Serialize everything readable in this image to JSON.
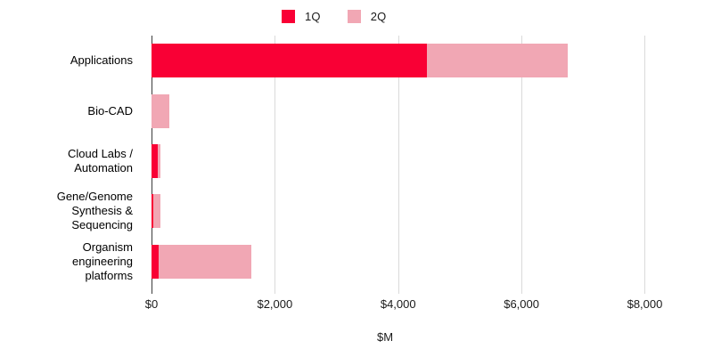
{
  "legend": {
    "items": [
      {
        "name": "1Q",
        "color": "#f90035"
      },
      {
        "name": "2Q",
        "color": "#f1a7b4"
      }
    ]
  },
  "chart_data": {
    "type": "bar",
    "orientation": "horizontal",
    "stacked": true,
    "title": "",
    "xlabel": "$M",
    "ylabel": "",
    "categories": [
      "Applications",
      "Bio-CAD",
      "Cloud Labs /\nAutomation",
      "Gene/Genome\nSynthesis &\nSequencing",
      "Organism\nengineering\nplatforms"
    ],
    "series": [
      {
        "name": "1Q",
        "color": "#f90035",
        "values": [
          4460,
          0,
          100,
          25,
          120
        ]
      },
      {
        "name": "2Q",
        "color": "#f1a7b4",
        "values": [
          2290,
          290,
          45,
          125,
          1500
        ]
      }
    ],
    "totals": [
      6750,
      290,
      145,
      150,
      1620
    ],
    "xlim": [
      0,
      8600
    ],
    "x_ticks": [
      {
        "value": 0,
        "label": "$0"
      },
      {
        "value": 2000,
        "label": "$2,000"
      },
      {
        "value": 4000,
        "label": "$4,000"
      },
      {
        "value": 6000,
        "label": "$6,000"
      },
      {
        "value": 8000,
        "label": "$8,000"
      }
    ],
    "grid": "vertical",
    "legend_position": "top-center",
    "colors": {
      "axis_line": "#3c3c3c",
      "gridline": "#dadada",
      "background": "#ffffff"
    }
  }
}
